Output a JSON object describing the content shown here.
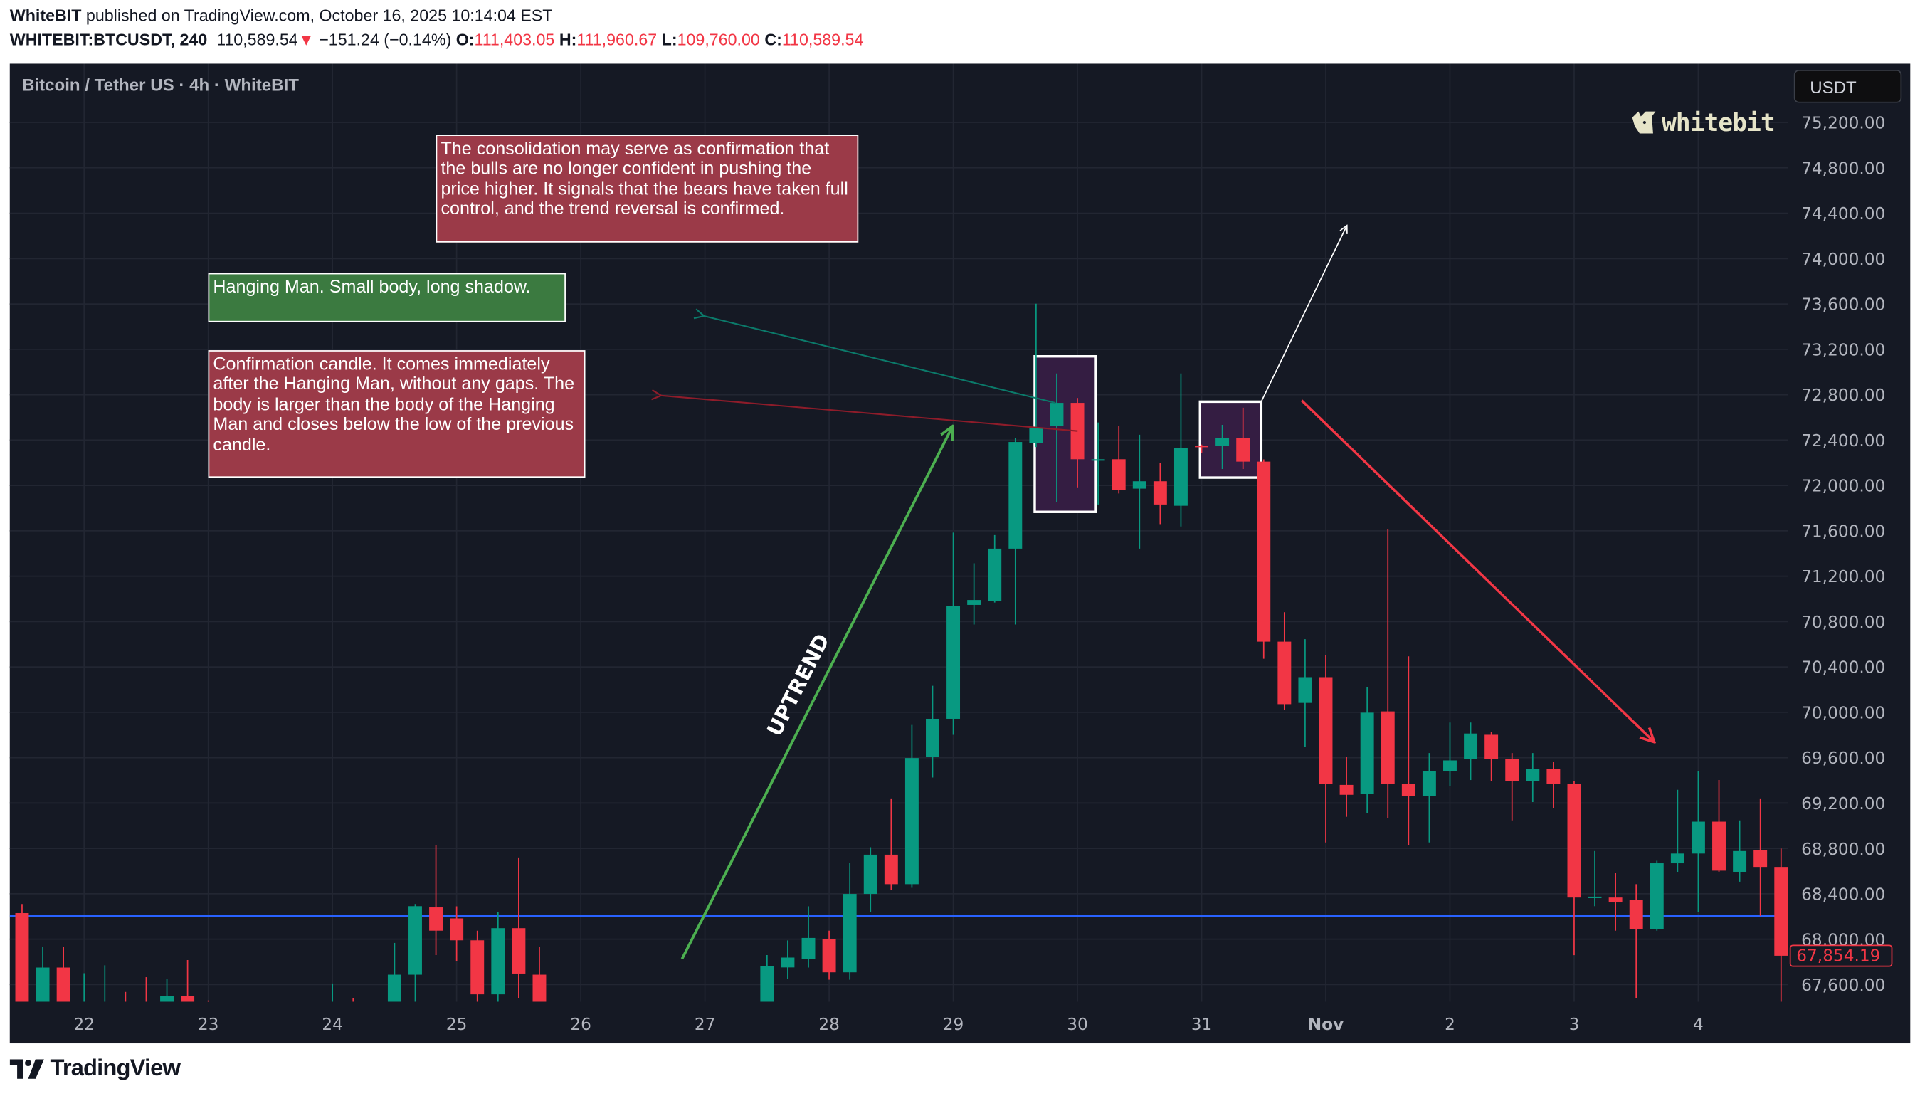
{
  "header": {
    "publisher": "WhiteBIT",
    "published_text": "published on TradingView.com, October 16, 2025 10:14:04 EST",
    "symbol": "WHITEBIT:BTCUSDT, 240",
    "price": "110,589.54",
    "change_arrow": "▼",
    "change": "−151.24 (−0.14%)",
    "o_label": "O:",
    "o": "111,403.05",
    "h_label": "H:",
    "h": "111,960.67",
    "l_label": "L:",
    "l": "109,760.00",
    "c_label": "C:",
    "c": "110,589.54"
  },
  "legend": "Bitcoin / Tether US · 4h · WhiteBIT",
  "currency_button": "USDT",
  "watermark_logo": "whitebit",
  "footer_logo": "TradingView",
  "colors": {
    "up": "#089981",
    "down": "#f23645",
    "background": "#151924",
    "grid": "#222632",
    "support_line": "#2962ff",
    "uptrend_arrow": "#4caf50",
    "downtrend_arrow": "#f23645",
    "note_red": "#9b3a48",
    "note_green": "#3b7a40",
    "highlight_box": "#341d42"
  },
  "annotations": {
    "consolidation_note": "The consolidation may serve as confirmation that the bulls are no longer confident in pushing the price higher. It signals that the bears have taken full control, and the trend reversal is confirmed.",
    "hanging_man_note": "Hanging Man. Small body, long shadow.",
    "confirmation_note": "Confirmation candle. It comes immediately after the Hanging Man, without any gaps. The body is larger than the body of the Hanging Man and closes below the low of the previous candle.",
    "uptrend_label": "UPTREND"
  },
  "chart_data": {
    "type": "candlestick",
    "title": "",
    "ylim": [
      67450,
      75500
    ],
    "y_ticks": [
      "75,200.00",
      "74,800.00",
      "74,400.00",
      "74,000.00",
      "73,600.00",
      "73,200.00",
      "72,800.00",
      "72,400.00",
      "72,000.00",
      "71,600.00",
      "71,200.00",
      "70,800.00",
      "70,400.00",
      "70,000.00",
      "69,600.00",
      "69,200.00",
      "68,800.00",
      "68,400.00",
      "68,000.00",
      "67,600.00"
    ],
    "y_tick_values": [
      75200,
      74800,
      74400,
      74000,
      73600,
      73200,
      72800,
      72400,
      72000,
      71600,
      71200,
      70800,
      70400,
      70000,
      69600,
      69200,
      68800,
      68400,
      68000,
      67600
    ],
    "x_ticks": [
      {
        "label": "22",
        "index": 3
      },
      {
        "label": "23",
        "index": 9
      },
      {
        "label": "24",
        "index": 15
      },
      {
        "label": "25",
        "index": 21
      },
      {
        "label": "26",
        "index": 27
      },
      {
        "label": "27",
        "index": 33
      },
      {
        "label": "28",
        "index": 39
      },
      {
        "label": "29",
        "index": 45
      },
      {
        "label": "30",
        "index": 51
      },
      {
        "label": "31",
        "index": 57
      },
      {
        "label": "Nov",
        "index": 63
      },
      {
        "label": "2",
        "index": 69
      },
      {
        "label": "3",
        "index": 75
      },
      {
        "label": "4",
        "index": 81
      }
    ],
    "grid": true,
    "support_level": 68205,
    "last_price": 67854.19,
    "last_price_label": "67,854.19",
    "candle_fields": [
      "time",
      "open",
      "high",
      "low",
      "close"
    ],
    "candles": [
      [
        "Oct 21 12:00",
        68230,
        68310,
        67300,
        67350
      ],
      [
        "Oct 21 16:00",
        67350,
        67935,
        67300,
        67750
      ],
      [
        "Oct 21 20:00",
        67750,
        67930,
        67300,
        67350
      ],
      [
        "Oct 22 00:00",
        67350,
        67700,
        67250,
        67400
      ],
      [
        "Oct 22 04:00",
        67300,
        67770,
        67200,
        67380
      ],
      [
        "Oct 22 08:00",
        67380,
        67535,
        67200,
        67300
      ],
      [
        "Oct 22 12:00",
        67350,
        67665,
        67200,
        67300
      ],
      [
        "Oct 22 16:00",
        67440,
        67650,
        67300,
        67500
      ],
      [
        "Oct 22 20:00",
        67500,
        67816,
        67300,
        67440
      ],
      [
        "Oct 23 00:00",
        67400,
        67460,
        67200,
        67350
      ],
      [
        "Oct 23 04:00",
        67350,
        67420,
        67100,
        67200
      ],
      [
        "Oct 23 08:00",
        67200,
        67380,
        67000,
        67150
      ],
      [
        "Oct 23 12:00",
        67150,
        67300,
        66950,
        67100
      ],
      [
        "Oct 23 16:00",
        67100,
        67250,
        66900,
        67050
      ],
      [
        "Oct 23 20:00",
        67050,
        67300,
        66900,
        67200
      ],
      [
        "Oct 24 00:00",
        67200,
        67610,
        67000,
        67350
      ],
      [
        "Oct 24 04:00",
        67350,
        67480,
        67100,
        67250
      ],
      [
        "Oct 24 08:00",
        67250,
        67400,
        67000,
        67300
      ],
      [
        "Oct 24 12:00",
        67300,
        67967,
        67200,
        67687
      ],
      [
        "Oct 24 16:00",
        67687,
        68310,
        67350,
        68291
      ],
      [
        "Oct 24 20:00",
        68280,
        68830,
        67860,
        68075
      ],
      [
        "Oct 25 00:00",
        68183,
        68290,
        67805,
        67990
      ],
      [
        "Oct 25 04:00",
        67990,
        68075,
        67420,
        67514
      ],
      [
        "Oct 25 08:00",
        67514,
        68240,
        67430,
        68097
      ],
      [
        "Oct 25 12:00",
        68097,
        68720,
        67481,
        67697
      ],
      [
        "Oct 25 16:00",
        67687,
        67935,
        67300,
        67420
      ],
      [
        "Oct 25 20:00",
        67420,
        67440,
        67100,
        67250
      ],
      [
        "Oct 26 00:00",
        67250,
        67400,
        67000,
        67150
      ],
      [
        "Oct 26 04:00",
        67150,
        67300,
        66900,
        67050
      ],
      [
        "Oct 26 08:00",
        67050,
        67250,
        66850,
        67000
      ],
      [
        "Oct 26 12:00",
        67000,
        67200,
        66800,
        67100
      ],
      [
        "Oct 26 16:00",
        67100,
        67300,
        66900,
        67000
      ],
      [
        "Oct 26 20:00",
        67000,
        67250,
        66850,
        67150
      ],
      [
        "Oct 27 00:00",
        67150,
        67350,
        66950,
        67100
      ],
      [
        "Oct 27 04:00",
        67100,
        67300,
        66950,
        67200
      ],
      [
        "Oct 27 08:00",
        67200,
        67400,
        67050,
        67300
      ],
      [
        "Oct 27 12:00",
        67300,
        67860,
        67200,
        67762
      ],
      [
        "Oct 27 16:00",
        67751,
        67989,
        67650,
        67838
      ],
      [
        "Oct 27 20:00",
        67827,
        68290,
        67750,
        68011
      ],
      [
        "Oct 28 00:00",
        68000,
        68075,
        67643,
        67708
      ],
      [
        "Oct 28 04:00",
        67708,
        68669,
        67643,
        68399
      ],
      [
        "Oct 28 08:00",
        68399,
        68810,
        68237,
        68745
      ],
      [
        "Oct 28 12:00",
        68745,
        69241,
        68432,
        68485
      ],
      [
        "Oct 28 16:00",
        68485,
        69889,
        68453,
        69597
      ],
      [
        "Oct 28 20:00",
        69608,
        70234,
        69425,
        69943
      ],
      [
        "Oct 29 00:00",
        69943,
        71584,
        69802,
        70936
      ],
      [
        "Oct 29 04:00",
        70947,
        71314,
        70774,
        70990
      ],
      [
        "Oct 29 08:00",
        70979,
        71562,
        70968,
        71443
      ],
      [
        "Oct 29 12:00",
        71443,
        72415,
        70774,
        72383
      ],
      [
        "Oct 29 16:00",
        72372,
        73602,
        72339,
        72512
      ],
      [
        "Oct 29 20:00",
        72523,
        72987,
        71854,
        72728
      ],
      [
        "Oct 30 00:00",
        72728,
        72771,
        71983,
        72231
      ],
      [
        "Oct 30 04:00",
        72221,
        72555,
        71832,
        72231
      ],
      [
        "Oct 30 08:00",
        72231,
        72523,
        71929,
        71961
      ],
      [
        "Oct 30 12:00",
        71972,
        72447,
        71443,
        72037
      ],
      [
        "Oct 30 16:00",
        72037,
        72199,
        71659,
        71832
      ],
      [
        "Oct 30 20:00",
        71821,
        72987,
        71638,
        72329
      ],
      [
        "Oct 31 00:00",
        72350,
        72360,
        72285,
        72340
      ],
      [
        "Oct 31 04:00",
        72350,
        72534,
        72145,
        72415
      ],
      [
        "Oct 31 08:00",
        72415,
        72685,
        72145,
        72210
      ],
      [
        "Oct 31 12:00",
        72210,
        72230,
        70472,
        70623
      ],
      [
        "Oct 31 16:00",
        70623,
        70882,
        70018,
        70072
      ],
      [
        "Oct 31 20:00",
        70083,
        70645,
        69695,
        70310
      ],
      [
        "Nov 1 00:00",
        70310,
        70504,
        68853,
        69371
      ],
      [
        "Nov 1 04:00",
        69360,
        69608,
        69079,
        69273
      ],
      [
        "Nov 1 08:00",
        69284,
        70224,
        69112,
        69997
      ],
      [
        "Nov 1 12:00",
        70008,
        71616,
        69068,
        69371
      ],
      [
        "Nov 1 16:00",
        69371,
        70493,
        68831,
        69263
      ],
      [
        "Nov 1 20:00",
        69263,
        69641,
        68853,
        69479
      ],
      [
        "Nov 2 00:00",
        69479,
        69910,
        69349,
        69576
      ],
      [
        "Nov 2 04:00",
        69587,
        69910,
        69403,
        69813
      ],
      [
        "Nov 2 08:00",
        69802,
        69824,
        69392,
        69587
      ],
      [
        "Nov 2 12:00",
        69587,
        69641,
        69047,
        69392
      ],
      [
        "Nov 2 16:00",
        69392,
        69641,
        69209,
        69500
      ],
      [
        "Nov 2 20:00",
        69500,
        69565,
        69155,
        69371
      ],
      [
        "Nov 3 00:00",
        69371,
        69392,
        67859,
        68367
      ],
      [
        "Nov 3 04:00",
        68367,
        68777,
        68291,
        68375
      ],
      [
        "Nov 3 08:00",
        68367,
        68583,
        68075,
        68324
      ],
      [
        "Nov 3 12:00",
        68345,
        68485,
        67481,
        68086
      ],
      [
        "Nov 3 16:00",
        68086,
        68691,
        68075,
        68669
      ],
      [
        "Nov 3 20:00",
        68669,
        69317,
        68594,
        68755
      ],
      [
        "Nov 4 00:00",
        68755,
        69479,
        68237,
        69036
      ],
      [
        "Nov 4 04:00",
        69036,
        69403,
        68594,
        68604
      ],
      [
        "Nov 4 08:00",
        68594,
        69047,
        68507,
        68777
      ],
      [
        "Nov 4 12:00",
        68788,
        69241,
        68205,
        68637
      ],
      [
        "Nov 4 16:00",
        68637,
        68799,
        67428,
        67854.19
      ]
    ]
  }
}
